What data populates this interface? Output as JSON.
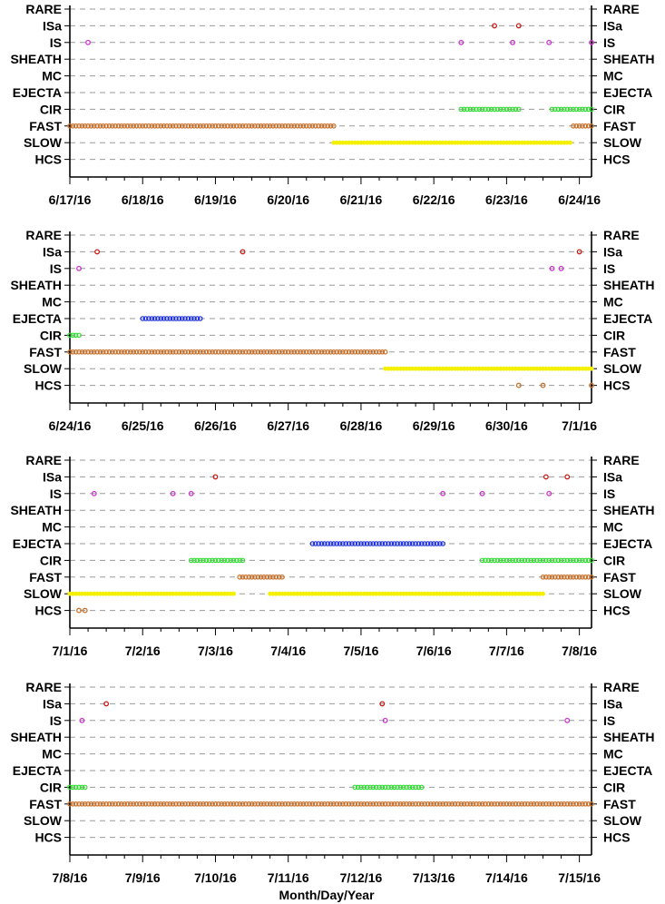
{
  "chart_data": {
    "type": "scatter",
    "xlabel": "Month/Day/Year",
    "categories": [
      "RARE",
      "ISa",
      "IS",
      "SHEATH",
      "MC",
      "EJECTA",
      "CIR",
      "FAST",
      "SLOW",
      "HCS"
    ],
    "colors": {
      "ISa": "#cc1b14",
      "IS": "#cc33cc",
      "EJECTA": "#1a2ee6",
      "CIR": "#33dd33",
      "FAST": "#c8702a",
      "SLOW": "#f4f000",
      "HCS": "#c8702a"
    },
    "panels": [
      {
        "xlim": [
          "2016-06-17",
          "2016-06-24T04:00"
        ],
        "x_tick_labels": [
          "6/17/16",
          "6/18/16",
          "6/19/16",
          "6/20/16",
          "6/21/16",
          "6/22/16",
          "6/23/16",
          "6/24/16"
        ],
        "events": [
          {
            "category": "ISa",
            "at": "2016-06-22T20:00"
          },
          {
            "category": "ISa",
            "at": "2016-06-23T04:00"
          },
          {
            "category": "IS",
            "at": "2016-06-17T06:00"
          },
          {
            "category": "IS",
            "at": "2016-06-22T09:00"
          },
          {
            "category": "IS",
            "at": "2016-06-23T02:00"
          },
          {
            "category": "IS",
            "at": "2016-06-23T14:00"
          },
          {
            "category": "IS",
            "at": "2016-06-24T04:00"
          }
        ],
        "intervals": [
          {
            "category": "CIR",
            "start": "2016-06-22T09:00",
            "end": "2016-06-23T04:00"
          },
          {
            "category": "CIR",
            "start": "2016-06-23T15:00",
            "end": "2016-06-24T04:00"
          },
          {
            "category": "FAST",
            "start": "2016-06-17T00:00",
            "end": "2016-06-20T15:00"
          },
          {
            "category": "FAST",
            "start": "2016-06-23T22:00",
            "end": "2016-06-24T04:00"
          },
          {
            "category": "SLOW",
            "start": "2016-06-20T15:00",
            "end": "2016-06-23T21:00"
          }
        ]
      },
      {
        "xlim": [
          "2016-06-24",
          "2016-07-01T04:00"
        ],
        "x_tick_labels": [
          "6/24/16",
          "6/25/16",
          "6/26/16",
          "6/27/16",
          "6/28/16",
          "6/29/16",
          "6/30/16",
          "7/1/16"
        ],
        "events": [
          {
            "category": "ISa",
            "at": "2016-06-24T09:00"
          },
          {
            "category": "ISa",
            "at": "2016-06-26T09:00"
          },
          {
            "category": "ISa",
            "at": "2016-07-01T00:00"
          },
          {
            "category": "IS",
            "at": "2016-06-24T03:00"
          },
          {
            "category": "IS",
            "at": "2016-06-30T15:00"
          },
          {
            "category": "IS",
            "at": "2016-06-30T18:00"
          },
          {
            "category": "HCS",
            "at": "2016-06-30T04:00"
          },
          {
            "category": "HCS",
            "at": "2016-06-30T12:00"
          },
          {
            "category": "HCS",
            "at": "2016-07-01T04:00"
          }
        ],
        "intervals": [
          {
            "category": "EJECTA",
            "start": "2016-06-25T00:00",
            "end": "2016-06-25T19:00"
          },
          {
            "category": "CIR",
            "start": "2016-06-24T00:00",
            "end": "2016-06-24T03:00"
          },
          {
            "category": "FAST",
            "start": "2016-06-24T00:00",
            "end": "2016-06-28T08:00"
          },
          {
            "category": "SLOW",
            "start": "2016-06-28T08:00",
            "end": "2016-07-01T04:00"
          }
        ]
      },
      {
        "xlim": [
          "2016-07-01",
          "2016-07-08T04:00"
        ],
        "x_tick_labels": [
          "7/1/16",
          "7/2/16",
          "7/3/16",
          "7/4/16",
          "7/5/16",
          "7/6/16",
          "7/7/16",
          "7/8/16"
        ],
        "events": [
          {
            "category": "ISa",
            "at": "2016-07-03T00:00"
          },
          {
            "category": "ISa",
            "at": "2016-07-07T13:00"
          },
          {
            "category": "ISa",
            "at": "2016-07-07T20:00"
          },
          {
            "category": "IS",
            "at": "2016-07-01T08:00"
          },
          {
            "category": "IS",
            "at": "2016-07-02T10:00"
          },
          {
            "category": "IS",
            "at": "2016-07-02T16:00"
          },
          {
            "category": "IS",
            "at": "2016-07-06T03:00"
          },
          {
            "category": "IS",
            "at": "2016-07-06T16:00"
          },
          {
            "category": "IS",
            "at": "2016-07-07T14:00"
          },
          {
            "category": "HCS",
            "at": "2016-07-01T03:00"
          },
          {
            "category": "HCS",
            "at": "2016-07-01T05:00"
          }
        ],
        "intervals": [
          {
            "category": "EJECTA",
            "start": "2016-07-04T08:00",
            "end": "2016-07-06T03:00"
          },
          {
            "category": "CIR",
            "start": "2016-07-02T16:00",
            "end": "2016-07-03T09:00"
          },
          {
            "category": "CIR",
            "start": "2016-07-06T16:00",
            "end": "2016-07-08T04:00"
          },
          {
            "category": "FAST",
            "start": "2016-07-03T08:00",
            "end": "2016-07-03T22:00"
          },
          {
            "category": "FAST",
            "start": "2016-07-07T12:00",
            "end": "2016-07-08T04:00"
          },
          {
            "category": "SLOW",
            "start": "2016-07-01T00:00",
            "end": "2016-07-03T06:00"
          },
          {
            "category": "SLOW",
            "start": "2016-07-03T18:00",
            "end": "2016-07-07T12:00"
          }
        ]
      },
      {
        "xlim": [
          "2016-07-08",
          "2016-07-15T04:00"
        ],
        "x_tick_labels": [
          "7/8/16",
          "7/9/16",
          "7/10/16",
          "7/11/16",
          "7/12/16",
          "7/13/16",
          "7/14/16",
          "7/15/16"
        ],
        "events": [
          {
            "category": "ISa",
            "at": "2016-07-08T12:00"
          },
          {
            "category": "ISa",
            "at": "2016-07-12T07:00"
          },
          {
            "category": "IS",
            "at": "2016-07-08T04:00"
          },
          {
            "category": "IS",
            "at": "2016-07-12T08:00"
          },
          {
            "category": "IS",
            "at": "2016-07-14T20:00"
          }
        ],
        "intervals": [
          {
            "category": "CIR",
            "start": "2016-07-08T00:00",
            "end": "2016-07-08T05:00"
          },
          {
            "category": "CIR",
            "start": "2016-07-11T22:00",
            "end": "2016-07-12T20:00"
          },
          {
            "category": "FAST",
            "start": "2016-07-08T00:00",
            "end": "2016-07-15T04:00"
          }
        ]
      }
    ]
  }
}
